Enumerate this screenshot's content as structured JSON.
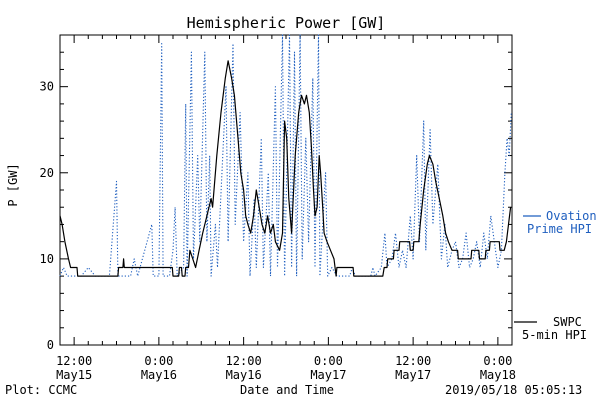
{
  "chart_data": {
    "type": "line",
    "title": "Hemispheric Power [GW]",
    "ylabel": "P [GW]",
    "xlabel": "Date and Time",
    "ylim": [
      0,
      36
    ],
    "xlim_hours": [
      -14,
      50
    ],
    "yticks": [
      0,
      10,
      20,
      30
    ],
    "xticks": [
      {
        "hour": -12,
        "time": "12:00",
        "date": "May15"
      },
      {
        "hour": 0,
        "time": "0:00",
        "date": "May16"
      },
      {
        "hour": 12,
        "time": "12:00",
        "date": "May16"
      },
      {
        "hour": 24,
        "time": "0:00",
        "date": "May17"
      },
      {
        "hour": 36,
        "time": "12:00",
        "date": "May17"
      },
      {
        "hour": 48,
        "time": "0:00",
        "date": "May18"
      }
    ],
    "series": [
      {
        "name": "Ovation Prime HPI",
        "color": "#1f5fbf",
        "style": "dotted",
        "points": [
          [
            -14,
            8
          ],
          [
            -13.5,
            9
          ],
          [
            -13,
            8
          ],
          [
            -11,
            8
          ],
          [
            -10,
            9
          ],
          [
            -9,
            8
          ],
          [
            -7,
            8
          ],
          [
            -6,
            19
          ],
          [
            -5.8,
            8
          ],
          [
            -4,
            8
          ],
          [
            -3.5,
            10
          ],
          [
            -3,
            8
          ],
          [
            -1,
            14
          ],
          [
            -0.8,
            8
          ],
          [
            0,
            8
          ],
          [
            0.4,
            35
          ],
          [
            0.6,
            8
          ],
          [
            1.5,
            8
          ],
          [
            2,
            11
          ],
          [
            2.3,
            16
          ],
          [
            2.6,
            8
          ],
          [
            3.5,
            9
          ],
          [
            3.8,
            28
          ],
          [
            4,
            8
          ],
          [
            4.6,
            34
          ],
          [
            4.9,
            10
          ],
          [
            5.5,
            22
          ],
          [
            5.8,
            12
          ],
          [
            6.5,
            34
          ],
          [
            6.8,
            12
          ],
          [
            7.2,
            22
          ],
          [
            7.4,
            8
          ],
          [
            8,
            14
          ],
          [
            8.3,
            9
          ],
          [
            9.5,
            30
          ],
          [
            9.8,
            12
          ],
          [
            10.5,
            35
          ],
          [
            10.8,
            14
          ],
          [
            11.5,
            27
          ],
          [
            12,
            12
          ],
          [
            12.6,
            20
          ],
          [
            12.9,
            8
          ],
          [
            13.5,
            17
          ],
          [
            13.8,
            9
          ],
          [
            14.5,
            24
          ],
          [
            14.8,
            9
          ],
          [
            15.5,
            20
          ],
          [
            15.8,
            8
          ],
          [
            16.5,
            30
          ],
          [
            16.8,
            9
          ],
          [
            17.5,
            36
          ],
          [
            17.8,
            8
          ],
          [
            18.5,
            36
          ],
          [
            18.8,
            9
          ],
          [
            19.2,
            34
          ],
          [
            19.5,
            8
          ],
          [
            20,
            36
          ],
          [
            20.3,
            10
          ],
          [
            20.8,
            24
          ],
          [
            21.2,
            12
          ],
          [
            21.8,
            31
          ],
          [
            22.1,
            9
          ],
          [
            22.6,
            36
          ],
          [
            22.8,
            8
          ],
          [
            23.6,
            20
          ],
          [
            23.9,
            8
          ],
          [
            24.5,
            9
          ],
          [
            25.2,
            8
          ],
          [
            27,
            8
          ],
          [
            27.4,
            9
          ],
          [
            27.8,
            8
          ],
          [
            30,
            8
          ],
          [
            30.3,
            9
          ],
          [
            30.6,
            8
          ],
          [
            31.5,
            9
          ],
          [
            32,
            13
          ],
          [
            32.3,
            9
          ],
          [
            33,
            10
          ],
          [
            33.5,
            13
          ],
          [
            34,
            9
          ],
          [
            34.5,
            11
          ],
          [
            35,
            9
          ],
          [
            35.6,
            15
          ],
          [
            36,
            10
          ],
          [
            36.5,
            22
          ],
          [
            36.9,
            12
          ],
          [
            37.5,
            26
          ],
          [
            37.8,
            11
          ],
          [
            38.4,
            25
          ],
          [
            38.8,
            14
          ],
          [
            39.5,
            21
          ],
          [
            40,
            10
          ],
          [
            40.5,
            14
          ],
          [
            40.9,
            9
          ],
          [
            41.5,
            11
          ],
          [
            42,
            12
          ],
          [
            42.5,
            9
          ],
          [
            43,
            10
          ],
          [
            43.5,
            13
          ],
          [
            44,
            9
          ],
          [
            44.5,
            10
          ],
          [
            45,
            12
          ],
          [
            45.5,
            9
          ],
          [
            46,
            13
          ],
          [
            46.5,
            10
          ],
          [
            47,
            15
          ],
          [
            47.5,
            12
          ],
          [
            48,
            9
          ],
          [
            48.5,
            11
          ],
          [
            49,
            20
          ],
          [
            49.3,
            24
          ],
          [
            49.6,
            22
          ],
          [
            49.9,
            27
          ]
        ]
      },
      {
        "name": "SWPC 5-min HPI",
        "color": "#000000",
        "style": "solid",
        "points": [
          [
            -14,
            15
          ],
          [
            -13.7,
            14
          ],
          [
            -13.3,
            12
          ],
          [
            -12.8,
            10
          ],
          [
            -12.5,
            9
          ],
          [
            -11.6,
            9
          ],
          [
            -11.5,
            8
          ],
          [
            -5.8,
            8
          ],
          [
            -5.7,
            9
          ],
          [
            -5.1,
            9
          ],
          [
            -5,
            10
          ],
          [
            -4.9,
            9
          ],
          [
            1.9,
            9
          ],
          [
            2,
            8
          ],
          [
            2.8,
            8
          ],
          [
            2.9,
            9
          ],
          [
            3.2,
            9
          ],
          [
            3.3,
            8
          ],
          [
            3.7,
            8
          ],
          [
            3.8,
            9
          ],
          [
            4.2,
            9
          ],
          [
            4.4,
            11
          ],
          [
            4.8,
            10
          ],
          [
            5.2,
            9
          ],
          [
            5.7,
            11
          ],
          [
            6.2,
            13
          ],
          [
            7.4,
            17
          ],
          [
            7.6,
            16
          ],
          [
            8.2,
            22
          ],
          [
            8.8,
            27
          ],
          [
            9.4,
            31
          ],
          [
            9.8,
            33
          ],
          [
            10.3,
            31
          ],
          [
            10.7,
            29
          ],
          [
            11.2,
            24
          ],
          [
            11.6,
            20
          ],
          [
            12,
            18
          ],
          [
            12.3,
            15
          ],
          [
            12.6,
            14
          ],
          [
            13,
            13
          ],
          [
            13.4,
            15
          ],
          [
            13.8,
            18
          ],
          [
            14.2,
            16
          ],
          [
            14.6,
            14
          ],
          [
            15,
            13
          ],
          [
            15.4,
            15
          ],
          [
            15.8,
            13
          ],
          [
            16.2,
            14
          ],
          [
            16.5,
            12
          ],
          [
            17.1,
            11
          ],
          [
            17.5,
            13
          ],
          [
            17.8,
            26
          ],
          [
            18.1,
            24
          ],
          [
            18.4,
            17
          ],
          [
            18.8,
            13
          ],
          [
            19.3,
            22
          ],
          [
            19.8,
            27
          ],
          [
            20.2,
            29
          ],
          [
            20.6,
            28
          ],
          [
            20.9,
            29
          ],
          [
            21.3,
            27
          ],
          [
            21.6,
            23
          ],
          [
            21.9,
            18
          ],
          [
            22.1,
            15
          ],
          [
            22.4,
            16
          ],
          [
            22.7,
            22
          ],
          [
            22.9,
            20
          ],
          [
            23.2,
            16
          ],
          [
            23.4,
            13
          ],
          [
            23.8,
            12
          ],
          [
            24.3,
            11
          ],
          [
            24.8,
            10
          ],
          [
            25.1,
            8
          ],
          [
            25.2,
            9
          ],
          [
            27.5,
            9
          ],
          [
            27.6,
            8
          ],
          [
            31.7,
            8
          ],
          [
            31.9,
            9
          ],
          [
            32.3,
            9
          ],
          [
            32.4,
            10
          ],
          [
            33.2,
            10
          ],
          [
            33.3,
            11
          ],
          [
            34,
            11
          ],
          [
            34.1,
            12
          ],
          [
            35.5,
            12
          ],
          [
            35.6,
            11
          ],
          [
            36,
            11
          ],
          [
            36.1,
            12
          ],
          [
            36.8,
            12
          ],
          [
            37,
            14
          ],
          [
            37.5,
            18
          ],
          [
            38,
            21
          ],
          [
            38.3,
            22
          ],
          [
            38.8,
            21
          ],
          [
            39.2,
            19
          ],
          [
            39.7,
            17
          ],
          [
            40.2,
            15
          ],
          [
            40.6,
            13
          ],
          [
            41,
            12
          ],
          [
            41.5,
            11
          ],
          [
            42.3,
            11
          ],
          [
            42.4,
            10
          ],
          [
            44.2,
            10
          ],
          [
            44.3,
            11
          ],
          [
            45.3,
            11
          ],
          [
            45.4,
            10
          ],
          [
            46.2,
            10
          ],
          [
            46.3,
            11
          ],
          [
            46.8,
            11
          ],
          [
            46.9,
            12
          ],
          [
            48.2,
            12
          ],
          [
            48.3,
            11
          ],
          [
            48.9,
            11
          ],
          [
            49.2,
            12
          ],
          [
            49.5,
            14
          ],
          [
            49.8,
            16
          ]
        ]
      }
    ],
    "legend": {
      "ovation_line1": "Ovation",
      "ovation_line2": "Prime HPI",
      "swpc_line1": "SWPC",
      "swpc_line2": "5-min HPI"
    }
  },
  "footer": {
    "plot_credit": "Plot: CCMC",
    "timestamp": "2019/05/18 05:05:13"
  }
}
